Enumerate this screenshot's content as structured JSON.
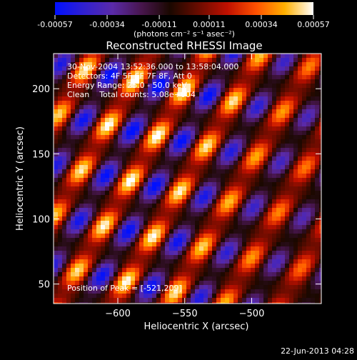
{
  "chart_data": {
    "type": "heatmap",
    "title": "Reconstructed RHESSI Image",
    "xlabel": "Heliocentric X (arcsec)",
    "ylabel": "Heliocentric Y (arcsec)",
    "xlim": [
      -648,
      -448
    ],
    "ylim": [
      35,
      227
    ],
    "x_ticks": [
      -600,
      -550,
      -500
    ],
    "x_tick_labels": [
      "−600",
      "−550",
      "−500"
    ],
    "y_ticks": [
      50,
      100,
      150,
      200
    ],
    "y_tick_labels": [
      "50",
      "100",
      "150",
      "200"
    ],
    "annotations": [
      "30-Nov-2004 13:52:36.000 to 13:58:04.000",
      "Detectors: 4F 5F 6F 7F 8F, Att 0",
      "Energy Range: 25.0 - 50.0 keV",
      "Clean    Total counts: 5.08e+004"
    ],
    "peak_label": "Position of Peak = [-521,209]",
    "peak_position": [
      -521,
      209
    ],
    "colorbar": {
      "range": [
        -0.00057,
        0.00057
      ],
      "ticks": [
        -0.00057,
        -0.00034,
        -0.00011,
        0.00011,
        0.00034,
        0.00057
      ],
      "tick_labels": [
        "-0.00057",
        "-0.00034",
        "-0.00011",
        "0.00011",
        "0.00034",
        "0.00057"
      ],
      "unit_label": "(photons cm⁻² s⁻¹ asec⁻²)",
      "colormap": [
        "#0010ff",
        "#3020d0",
        "#5a2aa8",
        "#48164e",
        "#1a0800",
        "#6a0c00",
        "#c01000",
        "#ff5000",
        "#ffb000",
        "#ffffff"
      ]
    },
    "stripe_angle_deg": 60,
    "grid": false,
    "legend": "none"
  },
  "footer": {
    "date": "22-Jun-2013 04:28"
  }
}
